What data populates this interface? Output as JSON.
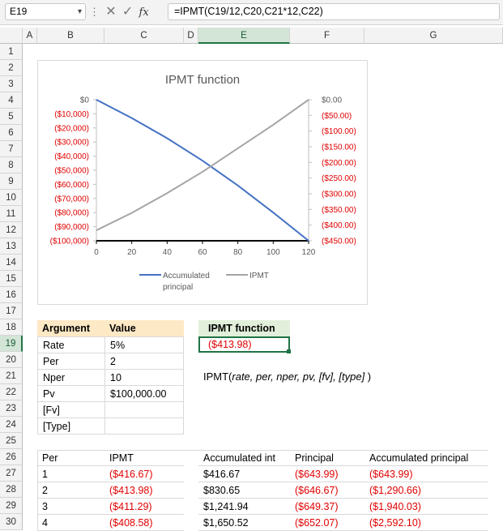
{
  "namebox": "E19",
  "formula": "=IPMT(C19/12,C20,C21*12,C22)",
  "columns": [
    "A",
    "B",
    "C",
    "D",
    "E",
    "F",
    "G"
  ],
  "rows": [
    "1",
    "2",
    "3",
    "4",
    "5",
    "6",
    "7",
    "8",
    "9",
    "10",
    "11",
    "12",
    "13",
    "14",
    "15",
    "16",
    "17",
    "18",
    "19",
    "20",
    "21",
    "22",
    "23",
    "24",
    "25",
    "26",
    "27",
    "28",
    "29",
    "30"
  ],
  "arg_table": {
    "header": [
      "Argument",
      "Value"
    ],
    "rows": [
      [
        "Rate",
        "5%"
      ],
      [
        "Per",
        "2"
      ],
      [
        "Nper",
        "10"
      ],
      [
        "Pv",
        "$100,000.00"
      ],
      [
        "[Fv]",
        ""
      ],
      [
        "[Type]",
        ""
      ]
    ]
  },
  "ipmt_box": {
    "header": "IPMT function",
    "value": "($413.98)"
  },
  "syntax": {
    "fn": "IPMT(",
    "args": "rate, per, nper, pv, [fv], [type]",
    "close": " )"
  },
  "sched": {
    "headers": [
      "Per",
      "IPMT",
      "Accumulated int",
      "Principal",
      "Accumulated principal"
    ],
    "rows": [
      [
        "1",
        "($416.67)",
        "$416.67",
        "($643.99)",
        "($643.99)"
      ],
      [
        "2",
        "($413.98)",
        "$830.65",
        "($646.67)",
        "($1,290.66)"
      ],
      [
        "3",
        "($411.29)",
        "$1,241.94",
        "($649.37)",
        "($1,940.03)"
      ],
      [
        "4",
        "($408.58)",
        "$1,650.52",
        "($652.07)",
        "($2,592.10)"
      ]
    ]
  },
  "chart_data": {
    "type": "line",
    "title": "IPMT function",
    "x": [
      0,
      20,
      40,
      60,
      80,
      100,
      120
    ],
    "x_ticks": [
      "0",
      "20",
      "40",
      "60",
      "80",
      "100",
      "120"
    ],
    "xlim": [
      0,
      120
    ],
    "y_left_ticks": [
      "$0",
      "($10,000)",
      "($20,000)",
      "($30,000)",
      "($40,000)",
      "($50,000)",
      "($60,000)",
      "($70,000)",
      "($80,000)",
      "($90,000)",
      "($100,000)"
    ],
    "y_left_lim": [
      -100000,
      0
    ],
    "y_right_ticks": [
      "$0.00",
      "($50.00)",
      "($100.00)",
      "($150.00)",
      "($200.00)",
      "($250.00)",
      "($300.00)",
      "($350.00)",
      "($400.00)",
      "($450.00)"
    ],
    "y_right_lim": [
      -450,
      0
    ],
    "series": [
      {
        "name": "Accumulated principal",
        "axis": "left",
        "color": "#4472c4",
        "values": [
          0,
          -13000,
          -27300,
          -43200,
          -60800,
          -80000,
          -100000
        ]
      },
      {
        "name": "IPMT",
        "axis": "right",
        "color": "#a5a5a5",
        "values": [
          -416.67,
          -361,
          -298,
          -230,
          -155,
          -80,
          0
        ]
      }
    ],
    "legend": "bottom"
  }
}
